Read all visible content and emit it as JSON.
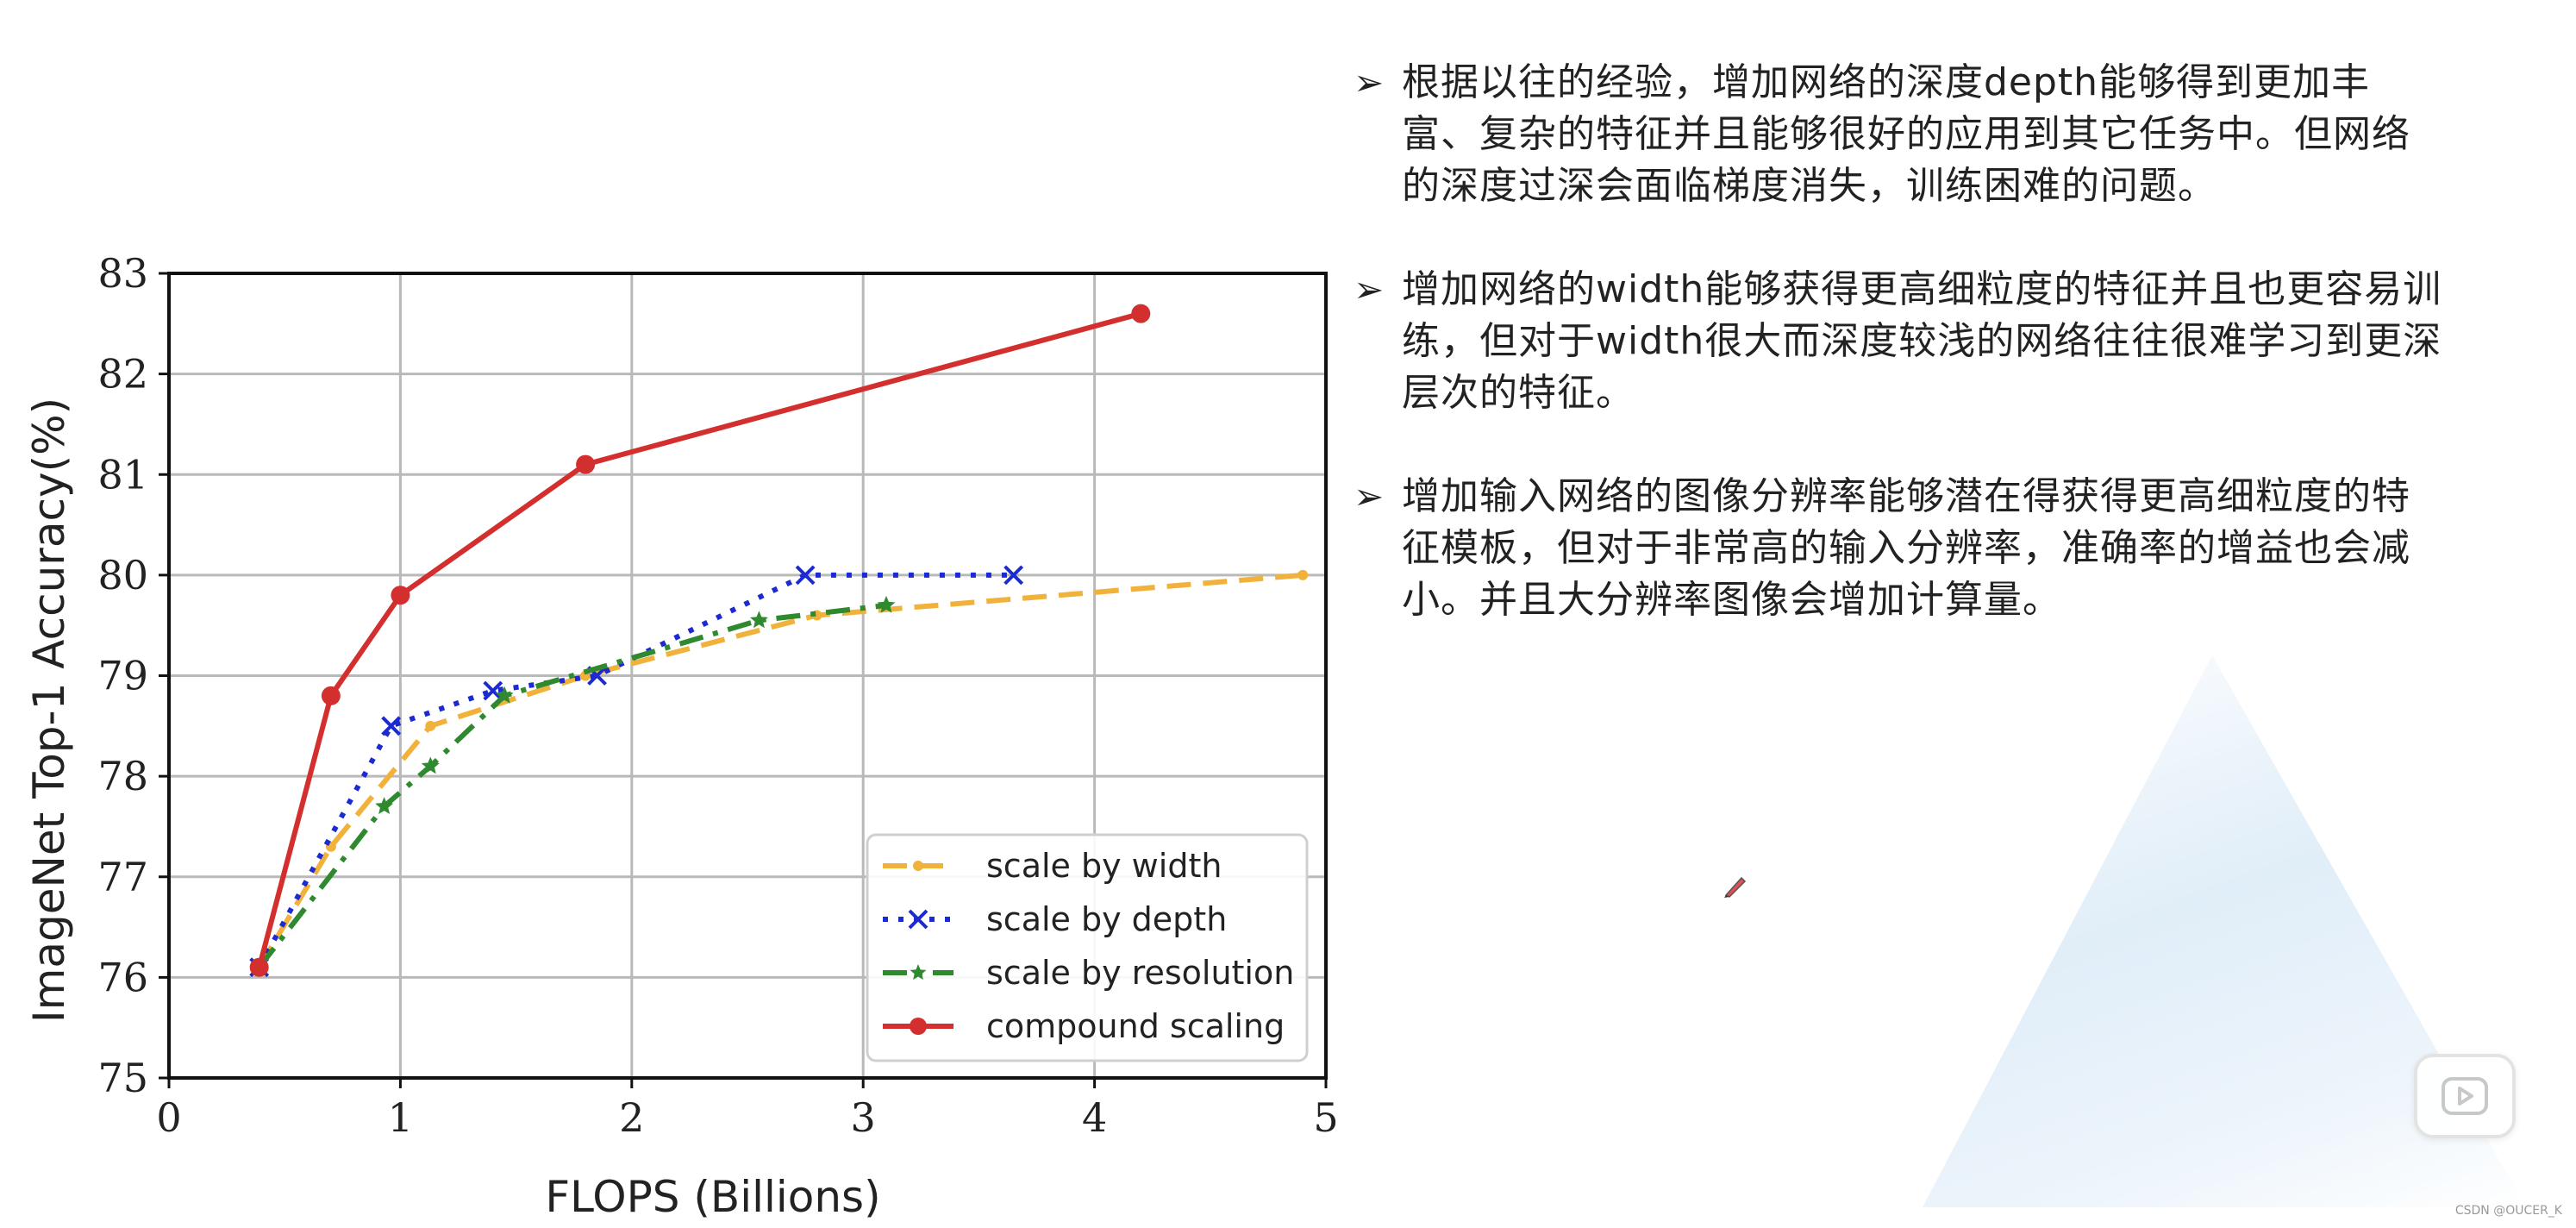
{
  "chart_data": {
    "type": "line",
    "xlabel": "FLOPS (Billions)",
    "ylabel": "ImageNet Top-1 Accuracy(%)",
    "xlim": [
      0,
      5
    ],
    "ylim": [
      75,
      83
    ],
    "xticks": [
      "0",
      "1",
      "2",
      "3",
      "4",
      "5"
    ],
    "yticks": [
      "75",
      "76",
      "77",
      "78",
      "79",
      "80",
      "81",
      "82",
      "83"
    ],
    "grid": true,
    "legend_position": "lower-right",
    "series": [
      {
        "name": "scale by width",
        "color": "#f0b23a",
        "style": "dashed",
        "marker": "dot",
        "x": [
          0.39,
          0.7,
          1.13,
          1.8,
          2.8,
          4.9
        ],
        "y": [
          76.1,
          77.3,
          78.5,
          79.0,
          79.6,
          80.0
        ]
      },
      {
        "name": "scale by depth",
        "color": "#1b2bd1",
        "style": "dotted",
        "marker": "x",
        "x": [
          0.39,
          0.96,
          1.4,
          1.85,
          2.75,
          3.65
        ],
        "y": [
          76.1,
          78.5,
          78.85,
          79.0,
          80.0,
          80.0
        ]
      },
      {
        "name": "scale by resolution",
        "color": "#2f8a2f",
        "style": "dashdot",
        "marker": "star",
        "x": [
          0.39,
          0.93,
          1.13,
          1.45,
          2.55,
          3.1
        ],
        "y": [
          76.1,
          77.7,
          78.1,
          78.8,
          79.55,
          79.7
        ]
      },
      {
        "name": "compound scaling",
        "color": "#d42f2f",
        "style": "solid",
        "marker": "circle",
        "x": [
          0.39,
          0.7,
          1.0,
          1.8,
          4.2
        ],
        "y": [
          76.1,
          78.8,
          79.8,
          81.1,
          82.6
        ]
      }
    ]
  },
  "bullets": [
    {
      "icon": "arrowhead-bullet-icon",
      "text": "根据以往的经验，增加网络的深度depth能够得到更加丰富、复杂的特征并且能够很好的应用到其它任务中。但网络的深度过深会面临梯度消失，训练困难的问题。"
    },
    {
      "icon": "arrowhead-bullet-icon",
      "text": "增加网络的width能够获得更高细粒度的特征并且也更容易训练，但对于width很大而深度较浅的网络往往很难学习到更深层次的特征。"
    },
    {
      "icon": "arrowhead-bullet-icon",
      "text": "增加输入网络的图像分辨率能够潜在得获得更高细粒度的特征模板，但对于非常高的输入分辨率，准确率的增益也会减小。并且大分辨率图像会增加计算量。"
    }
  ],
  "credit": "CSDN @OUCER_K",
  "icons": {
    "play": "play-icon",
    "cursor": "pen-cursor-icon"
  }
}
